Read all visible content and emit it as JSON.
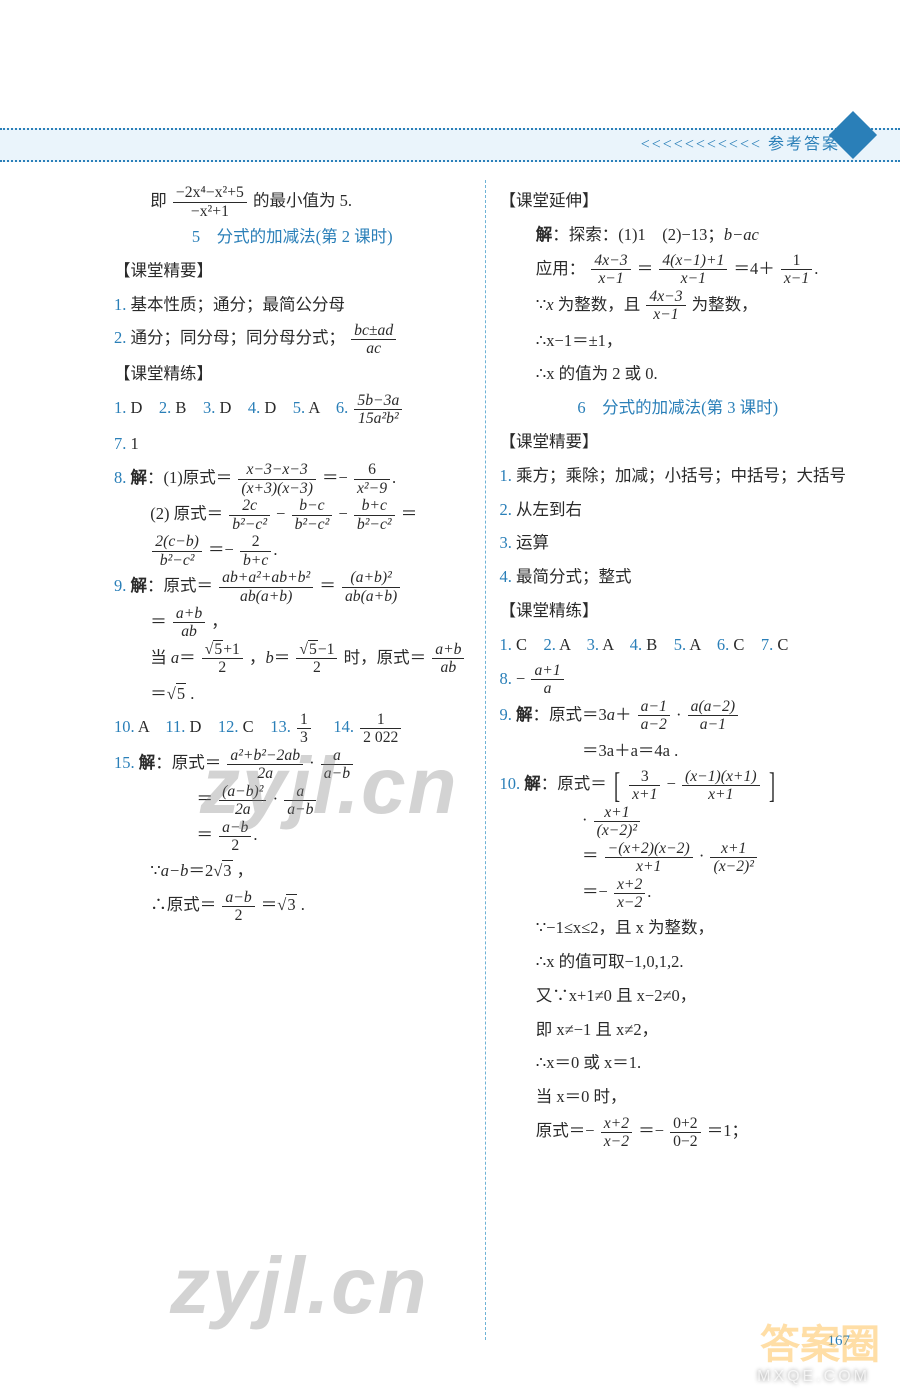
{
  "header": {
    "label": "<<<<<<<<<<< 参考答案"
  },
  "page_number": "167",
  "watermarks": {
    "w1": "zyjl.cn",
    "w2": "zyjl.cn",
    "corner": "答案圈",
    "footer": "MXQE.COM"
  },
  "left": {
    "l0a": "即",
    "l0b": "的最小值为 5.",
    "f0n": "−2x⁴−x²+5",
    "f0d": "−x²+1",
    "t1": "5　分式的加减法(第 2 课时)",
    "h1": "【课堂精要】",
    "p1": "1. 基本性质；通分；最简公分母",
    "p2a": "2. 通分；同分母；同分母分式；",
    "f2n": "bc±ad",
    "f2d": "ac",
    "h2": "【课堂精练】",
    "r1": "1. D　2. B　3. D　4. D　5. A　6.",
    "f3n": "5b−3a",
    "f3d": "15a²b²",
    "r2": "7. 1",
    "r3a": "8. 解：(1)原式＝",
    "f4n": "x−3−x−3",
    "f4d": "(x+3)(x−3)",
    "eq": "＝−",
    "f5n": "6",
    "f5d": "x²−9",
    "dot": ".",
    "r4a": "(2) 原式＝",
    "f6n": "2c",
    "f6d": "b²−c²",
    "minus": "−",
    "f7n": "b−c",
    "f7d": "b²−c²",
    "f8n": "b+c",
    "f8d": "b²−c²",
    "f9n": "2(c−b)",
    "f9d": "b²−c²",
    "f10n": "2",
    "f10d": "b+c",
    "r5a": "9. 解：原式＝",
    "f11n": "ab+a²+ab+b²",
    "f11d": "ab(a+b)",
    "f12n": "(a+b)²",
    "f12d": "ab(a+b)",
    "f13n": "a+b",
    "f13d": "ab",
    "comma": "，",
    "r6a": "当 a＝",
    "f14n": "√5+1",
    "f14d": "2",
    "r6b": "，b＝",
    "f15n": "√5−1",
    "f15d": "2",
    "r6c": "时，原式＝",
    "f16n": "a+b",
    "f16d": "ab",
    "r7": "＝√5 .",
    "r8": "10. A　11. D　12. C　13.",
    "f17n": "1",
    "f17d": "3",
    "r8b": "　14.",
    "f18n": "1",
    "f18d": "2 022",
    "r9a": "15. 解：原式＝",
    "f19n": "a²+b²−2ab",
    "f19d": "2a",
    "cdot": "·",
    "f20n": "a",
    "f20d": "a−b",
    "f21n": "(a−b)²",
    "f21d": "2a",
    "f22n": "a",
    "f22d": "a−b",
    "f23n": "a−b",
    "f23d": "2",
    "r10": "∵a−b＝2√3 ，",
    "r11a": "∴原式＝",
    "f24n": "a−b",
    "f24d": "2",
    "r11b": "＝√3 ."
  },
  "right": {
    "h1": "【课堂延伸】",
    "p1": "解：探索：(1)1　(2)−13；b−ac",
    "p2a": "应用：",
    "f1n": "4x−3",
    "f1d": "x−1",
    "eq": "＝",
    "f2n": "4(x−1)+1",
    "f2d": "x−1",
    "p2b": "＝4＋",
    "f3n": "1",
    "f3d": "x−1",
    "dot": ".",
    "p3a": "∵x 为整数，且",
    "f4n": "4x−3",
    "f4d": "x−1",
    "p3b": "为整数，",
    "p4": "∴x−1＝±1，",
    "p5": "∴x 的值为 2 或 0.",
    "t1": "6　分式的加减法(第 3 课时)",
    "h2": "【课堂精要】",
    "q1": "1. 乘方；乘除；加减；小括号；中括号；大括号",
    "q2": "2. 从左到右",
    "q3": "3. 运算",
    "q4": "4. 最简分式；整式",
    "h3": "【课堂精练】",
    "r1": "1. C　2. A　3. A　4. B　5. A　6. C　7. C",
    "r2a": "8. −",
    "f5n": "a+1",
    "f5d": "a",
    "r3a": "9. 解：原式＝3a＋",
    "f6n": "a−1",
    "f6d": "a−2",
    "cdot": "·",
    "f7n": "a(a−2)",
    "f7d": "a−1",
    "r3b": "＝3a＋a＝4a .",
    "r4a": "10. 解：原式＝",
    "f8n": "3",
    "f8d": "x+1",
    "minus": "−",
    "f9n": "(x−1)(x+1)",
    "f9d": "x+1",
    "f10n": "x+1",
    "f10d": "(x−2)²",
    "f11n": "−(x+2)(x−2)",
    "f11d": "x+1",
    "f12n": "x+1",
    "f12d": "(x−2)²",
    "f13n": "x+2",
    "f13d": "x−2",
    "r5": "∵−1≤x≤2，且 x 为整数，",
    "r6": "∴x 的值可取−1,0,1,2.",
    "r7": "又∵x+1≠0 且 x−2≠0，",
    "r8": "即 x≠−1 且 x≠2，",
    "r9": "∴x＝0 或 x＝1.",
    "r10": "当 x＝0 时，",
    "r11a": "原式＝−",
    "f14n": "x+2",
    "f14d": "x−2",
    "r11b": "＝−",
    "f15n": "0+2",
    "f15d": "0−2",
    "r11c": "＝1；"
  }
}
